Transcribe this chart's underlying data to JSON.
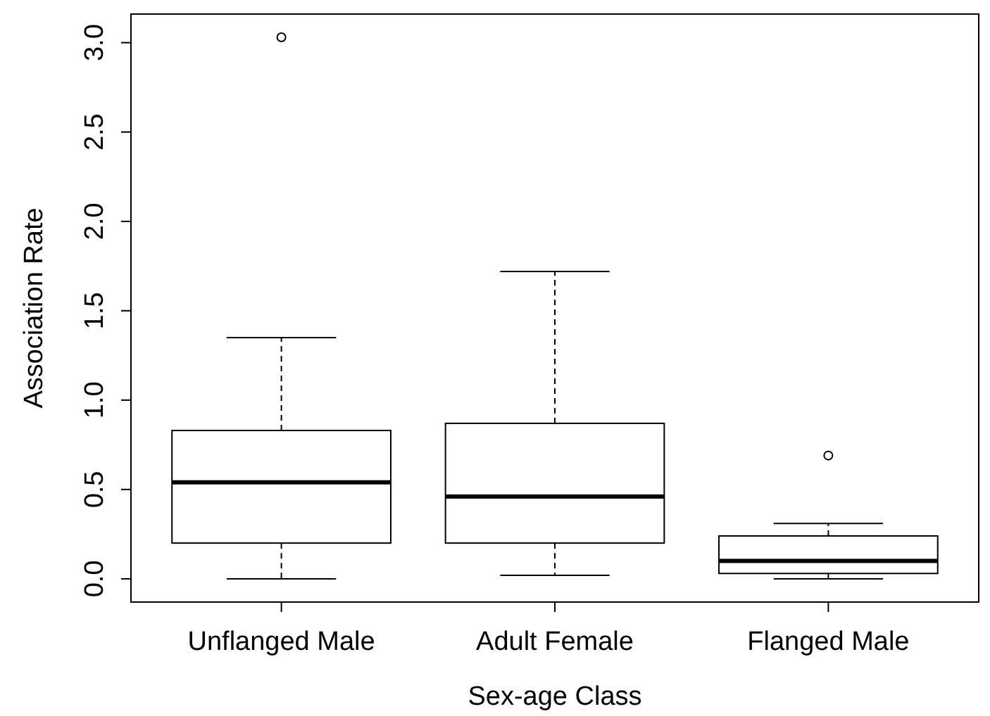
{
  "chart_data": {
    "type": "box",
    "xlabel": "Sex-age Class",
    "ylabel": "Association Rate",
    "categories": [
      "Unflanged Male",
      "Adult Female",
      "Flanged Male"
    ],
    "boxes": [
      {
        "low": 0,
        "q1": 0.2,
        "median": 0.54,
        "q3": 0.83,
        "high": 1.35,
        "outliers": [
          3.03
        ]
      },
      {
        "low": 0.02,
        "q1": 0.2,
        "median": 0.46,
        "q3": 0.87,
        "high": 1.72
      },
      {
        "low": 0,
        "q1": 0.03,
        "median": 0.1,
        "q3": 0.24,
        "high": 0.31,
        "outliers": [
          0.69
        ]
      }
    ],
    "color": "#ffffff",
    "ylim": [
      -0.13,
      3.16
    ],
    "yticks": [
      {
        "value": 0,
        "label": "0.0"
      },
      {
        "value": 0.5,
        "label": "0.5"
      },
      {
        "value": 1,
        "label": "1.0"
      },
      {
        "value": 1.5,
        "label": "1.5"
      },
      {
        "value": 2,
        "label": "2.0"
      },
      {
        "value": 2.5,
        "label": "2.5"
      },
      {
        "value": 3,
        "label": "3.0"
      }
    ],
    "grid": false
  }
}
